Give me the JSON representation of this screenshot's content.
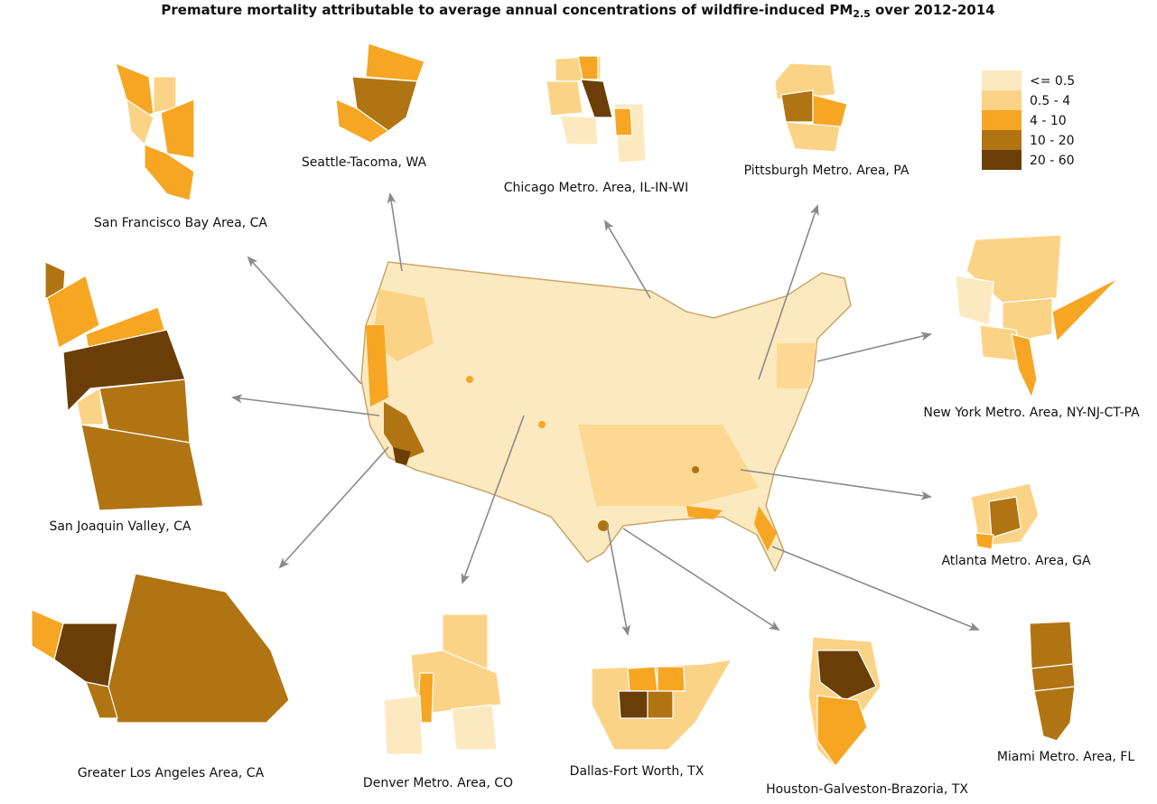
{
  "title": "Premature mortality attributable to average annual concentrations of wildfire-induced PM",
  "title_subscript": "2.5",
  "title_end": " over 2012-2014",
  "legend": [
    {
      "label": "<= 0.5",
      "color": "#fde9c0"
    },
    {
      "label": "0.5 - 4",
      "color": "#fbd386"
    },
    {
      "label": "4 - 10",
      "color": "#f6a623"
    },
    {
      "label": "10 - 20",
      "color": "#b07412"
    },
    {
      "label": "20 - 60",
      "color": "#6a3e06"
    }
  ],
  "regions": [
    "San Francisco Bay Area, CA",
    "Seattle-Tacoma, WA",
    "Chicago Metro. Area, IL-IN-WI",
    "Pittsburgh Metro. Area, PA",
    "New York Metro. Area, NY-NJ-CT-PA",
    "San Joaquin Valley, CA",
    "Atlanta Metro. Area, GA",
    "Greater Los Angeles Area, CA",
    "Denver Metro. Area, CO",
    "Dallas-Fort Worth, TX",
    "Houston-Galveston-Brazoria, TX",
    "Miami Metro. Area, FL"
  ]
}
